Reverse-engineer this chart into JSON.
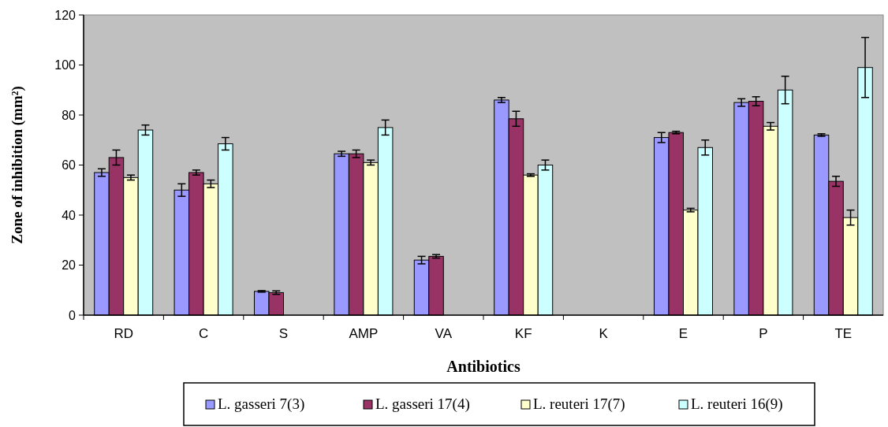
{
  "chart_data": {
    "type": "bar",
    "xlabel": "Antibiotics",
    "ylabel": "Zone of inhibition (mm²)",
    "categories": [
      "RD",
      "C",
      "S",
      "AMP",
      "VA",
      "KF",
      "K",
      "E",
      "P",
      "TE"
    ],
    "ylim": [
      0,
      120
    ],
    "yticks": [
      0,
      20,
      40,
      60,
      80,
      100,
      120
    ],
    "grid": false,
    "legend": "bottom",
    "series": [
      {
        "name": "L. gasseri 7(3)",
        "color": "#9999ff",
        "values": [
          57,
          50,
          9.5,
          64.5,
          22,
          86,
          null,
          71,
          85,
          72
        ],
        "errors": [
          1.5,
          2.5,
          0.3,
          1,
          1.5,
          1,
          null,
          2,
          1.5,
          0.5
        ]
      },
      {
        "name": "L. gasseri 17(4)",
        "color": "#993366",
        "values": [
          63,
          57,
          9,
          64.5,
          23.5,
          78.5,
          null,
          73,
          85.5,
          53.5
        ],
        "errors": [
          3,
          1,
          0.7,
          1.5,
          0.7,
          3,
          null,
          0.5,
          1.8,
          2
        ]
      },
      {
        "name": "L. reuteri 17(7)",
        "color": "#ffffcc",
        "values": [
          55,
          52.5,
          null,
          61,
          null,
          56,
          null,
          42,
          75.5,
          39
        ],
        "errors": [
          1,
          1.5,
          null,
          1,
          null,
          0.5,
          null,
          0.7,
          1.5,
          3
        ]
      },
      {
        "name": "L. reuteri 16(9)",
        "color": "#ccffff",
        "values": [
          74,
          68.5,
          null,
          75,
          null,
          60,
          null,
          67,
          90,
          99
        ],
        "errors": [
          2,
          2.5,
          null,
          3,
          null,
          2,
          null,
          3,
          5.5,
          12
        ]
      }
    ]
  }
}
